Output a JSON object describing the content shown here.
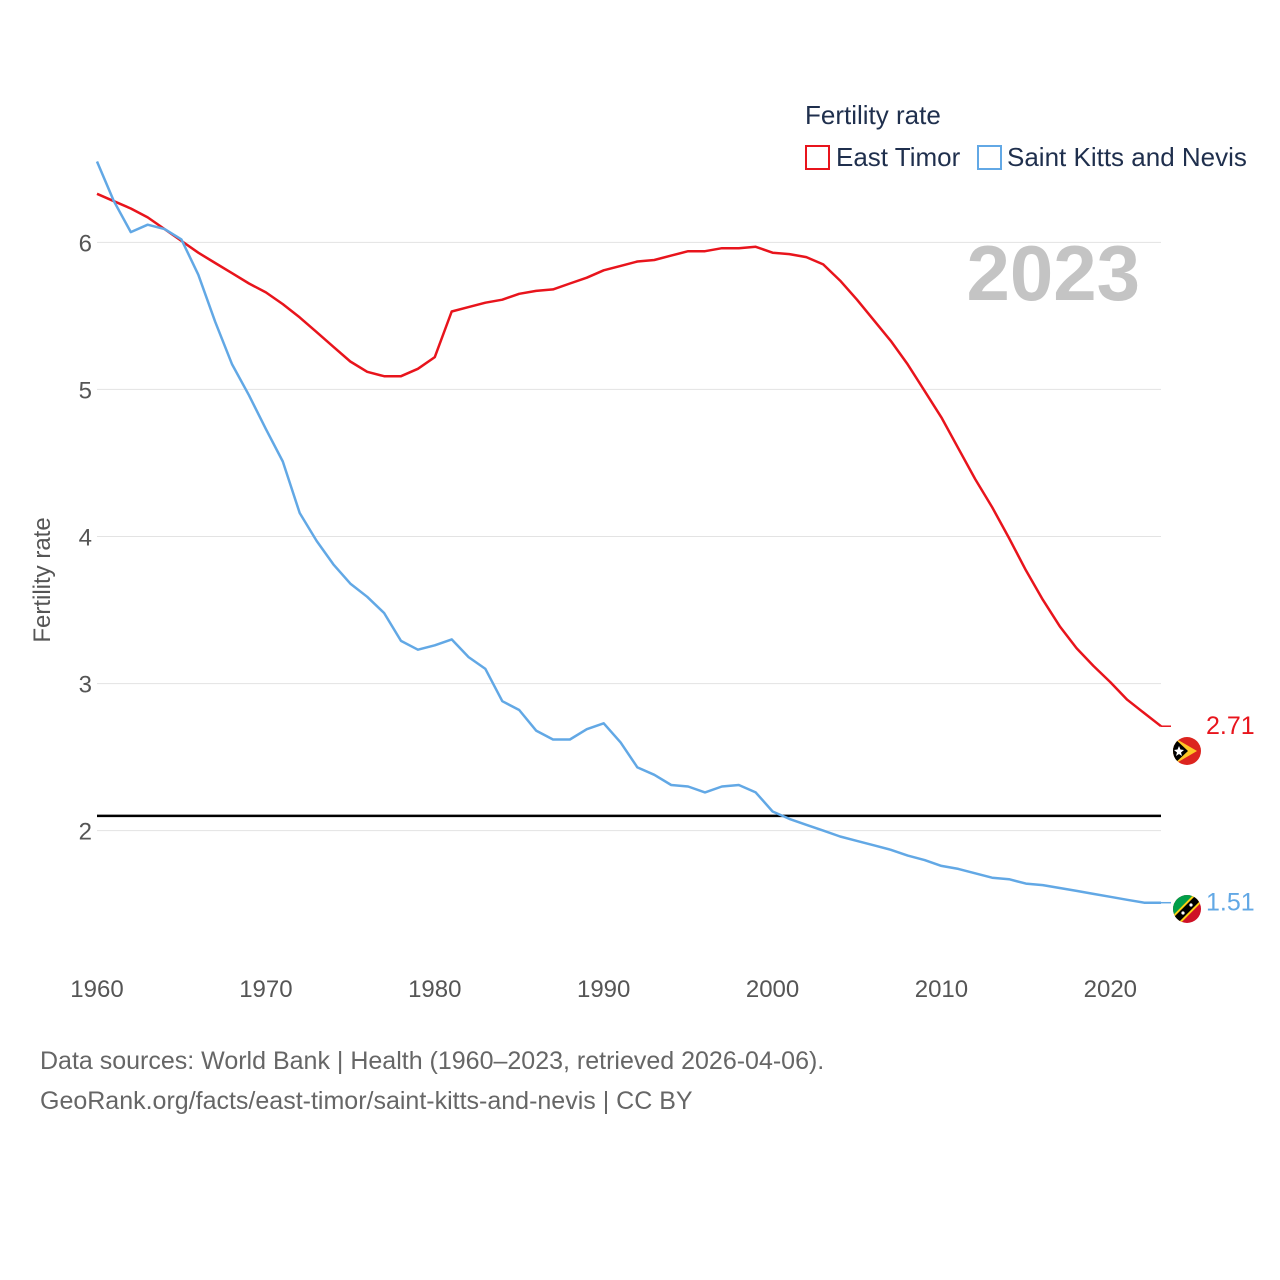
{
  "chart_data": {
    "type": "line",
    "legend_title": "Fertility rate",
    "ylabel": "Fertility rate",
    "year_label": "2023",
    "x_range": [
      1960,
      2023
    ],
    "ylim": [
      1.1,
      6.9
    ],
    "x_ticks": [
      1960,
      1970,
      1980,
      1990,
      2000,
      2010,
      2020
    ],
    "y_ticks": [
      2,
      3,
      4,
      5,
      6
    ],
    "reference_line": 2.1,
    "series": [
      {
        "name": "East Timor",
        "color": "#e8141c",
        "end_label": "2.71",
        "flag_icon": "east-timor-flag-icon",
        "x": [
          1960,
          1961,
          1962,
          1963,
          1964,
          1965,
          1966,
          1967,
          1968,
          1969,
          1970,
          1971,
          1972,
          1973,
          1974,
          1975,
          1976,
          1977,
          1978,
          1979,
          1980,
          1981,
          1982,
          1983,
          1984,
          1985,
          1986,
          1987,
          1988,
          1989,
          1990,
          1991,
          1992,
          1993,
          1994,
          1995,
          1996,
          1997,
          1998,
          1999,
          2000,
          2001,
          2002,
          2003,
          2004,
          2005,
          2006,
          2007,
          2008,
          2009,
          2010,
          2011,
          2012,
          2013,
          2014,
          2015,
          2016,
          2017,
          2018,
          2019,
          2020,
          2021,
          2022,
          2023
        ],
        "values": [
          6.33,
          6.28,
          6.23,
          6.17,
          6.09,
          6.01,
          5.93,
          5.86,
          5.79,
          5.72,
          5.66,
          5.58,
          5.49,
          5.39,
          5.29,
          5.19,
          5.12,
          5.09,
          5.09,
          5.14,
          5.22,
          5.53,
          5.56,
          5.59,
          5.61,
          5.65,
          5.67,
          5.68,
          5.72,
          5.76,
          5.81,
          5.84,
          5.87,
          5.88,
          5.91,
          5.94,
          5.94,
          5.96,
          5.96,
          5.97,
          5.93,
          5.92,
          5.9,
          5.85,
          5.74,
          5.61,
          5.47,
          5.33,
          5.17,
          4.99,
          4.81,
          4.6,
          4.39,
          4.2,
          3.99,
          3.77,
          3.57,
          3.39,
          3.24,
          3.12,
          3.01,
          2.89,
          2.8,
          2.71
        ]
      },
      {
        "name": "Saint Kitts and Nevis",
        "color": "#62a8e5",
        "end_label": "1.51",
        "flag_icon": "saint-kitts-flag-icon",
        "x": [
          1960,
          1961,
          1962,
          1963,
          1964,
          1965,
          1966,
          1967,
          1968,
          1969,
          1970,
          1971,
          1972,
          1973,
          1974,
          1975,
          1976,
          1977,
          1978,
          1979,
          1980,
          1981,
          1982,
          1983,
          1984,
          1985,
          1986,
          1987,
          1988,
          1989,
          1990,
          1991,
          1992,
          1993,
          1994,
          1995,
          1996,
          1997,
          1998,
          1999,
          2000,
          2001,
          2002,
          2003,
          2004,
          2005,
          2006,
          2007,
          2008,
          2009,
          2010,
          2011,
          2012,
          2013,
          2014,
          2015,
          2016,
          2017,
          2018,
          2019,
          2020,
          2021,
          2022,
          2023
        ],
        "values": [
          6.55,
          6.28,
          6.07,
          6.12,
          6.09,
          6.02,
          5.78,
          5.46,
          5.17,
          4.96,
          4.73,
          4.51,
          4.16,
          3.97,
          3.81,
          3.68,
          3.59,
          3.48,
          3.29,
          3.23,
          3.26,
          3.3,
          3.18,
          3.1,
          2.88,
          2.82,
          2.68,
          2.62,
          2.62,
          2.69,
          2.73,
          2.6,
          2.43,
          2.38,
          2.31,
          2.3,
          2.26,
          2.3,
          2.31,
          2.26,
          2.13,
          2.08,
          2.04,
          2.0,
          1.96,
          1.93,
          1.9,
          1.87,
          1.83,
          1.8,
          1.76,
          1.74,
          1.71,
          1.68,
          1.67,
          1.64,
          1.63,
          1.61,
          1.59,
          1.57,
          1.55,
          1.53,
          1.51,
          1.51
        ]
      }
    ]
  },
  "source": {
    "line1": "Data sources: World Bank | Health (1960–2023, retrieved 2026-04-06).",
    "line2": "GeoRank.org/facts/east-timor/saint-kitts-and-nevis | CC BY"
  }
}
